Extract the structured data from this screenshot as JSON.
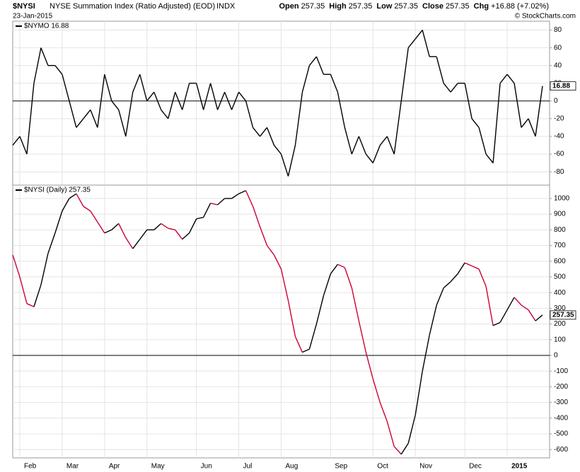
{
  "header": {
    "symbol": "$NYSI",
    "name": "NYSE Summation Index (Ratio Adjusted) (EOD)",
    "exchange": "INDX",
    "date": "23-Jan-2015",
    "quote": [
      {
        "label": "Open",
        "value": "257.35"
      },
      {
        "label": "High",
        "value": "257.35"
      },
      {
        "label": "Low",
        "value": "257.35"
      },
      {
        "label": "Close",
        "value": "257.35"
      },
      {
        "label": "Chg",
        "value": "+16.88 (+7.02%)"
      }
    ],
    "credit": "© StockCharts.com"
  },
  "chart_data": [
    {
      "type": "line",
      "xlim": [
        0,
        75
      ],
      "ylim": [
        -95,
        90
      ],
      "yticks": [
        -80,
        -60,
        -40,
        -20,
        0,
        20,
        40,
        60,
        80
      ],
      "grid": true,
      "series": [
        {
          "name": "$NYMO 16.88",
          "color": "#000000",
          "values": [
            -50,
            -40,
            -60,
            20,
            60,
            40,
            40,
            30,
            0,
            -30,
            -20,
            -10,
            -30,
            30,
            0,
            -10,
            -40,
            10,
            30,
            0,
            10,
            -10,
            -20,
            10,
            -10,
            20,
            20,
            -10,
            20,
            -10,
            10,
            -10,
            10,
            0,
            -30,
            -40,
            -30,
            -50,
            -60,
            -85,
            -50,
            10,
            40,
            50,
            30,
            30,
            10,
            -30,
            -60,
            -40,
            -60,
            -70,
            -50,
            -40,
            -60,
            0,
            60,
            70,
            80,
            50,
            50,
            20,
            10,
            20,
            20,
            -20,
            -30,
            -60,
            -70,
            20,
            30,
            20,
            -30,
            -20,
            -40,
            16.88
          ]
        }
      ]
    },
    {
      "type": "line",
      "xlim": [
        0,
        75
      ],
      "ylim": [
        -653,
        1085
      ],
      "yticks": [
        -600,
        -500,
        -400,
        -300,
        -200,
        -100,
        0,
        100,
        200,
        300,
        400,
        500,
        600,
        700,
        800,
        900,
        1000
      ],
      "grid": true,
      "xticks": [
        {
          "value": 1,
          "label": "Feb"
        },
        {
          "value": 7,
          "label": "Mar"
        },
        {
          "value": 13,
          "label": "Apr"
        },
        {
          "value": 19,
          "label": "May"
        },
        {
          "value": 26,
          "label": "Jun"
        },
        {
          "value": 32,
          "label": "Jul"
        },
        {
          "value": 38,
          "label": "Aug"
        },
        {
          "value": 45,
          "label": "Sep"
        },
        {
          "value": 51,
          "label": "Oct"
        },
        {
          "value": 57,
          "label": "Nov"
        },
        {
          "value": 64,
          "label": "Dec"
        },
        {
          "value": 70,
          "label": "2015"
        }
      ],
      "up_color": "#000000",
      "down_color": "#cc0033",
      "series": [
        {
          "name": "$NYSI (Daily) 257.35",
          "values": [
            640,
            500,
            330,
            310,
            450,
            650,
            780,
            920,
            1000,
            1030,
            950,
            920,
            850,
            780,
            800,
            840,
            750,
            680,
            740,
            800,
            800,
            840,
            810,
            800,
            740,
            780,
            870,
            880,
            970,
            960,
            1000,
            1000,
            1030,
            1050,
            950,
            820,
            700,
            640,
            550,
            350,
            120,
            20,
            40,
            200,
            380,
            520,
            580,
            560,
            430,
            220,
            20,
            -150,
            -300,
            -420,
            -580,
            -630,
            -560,
            -380,
            -100,
            130,
            320,
            430,
            470,
            520,
            590,
            570,
            550,
            440,
            190,
            210,
            290,
            370,
            320,
            290,
            220,
            257.35
          ]
        }
      ]
    }
  ]
}
